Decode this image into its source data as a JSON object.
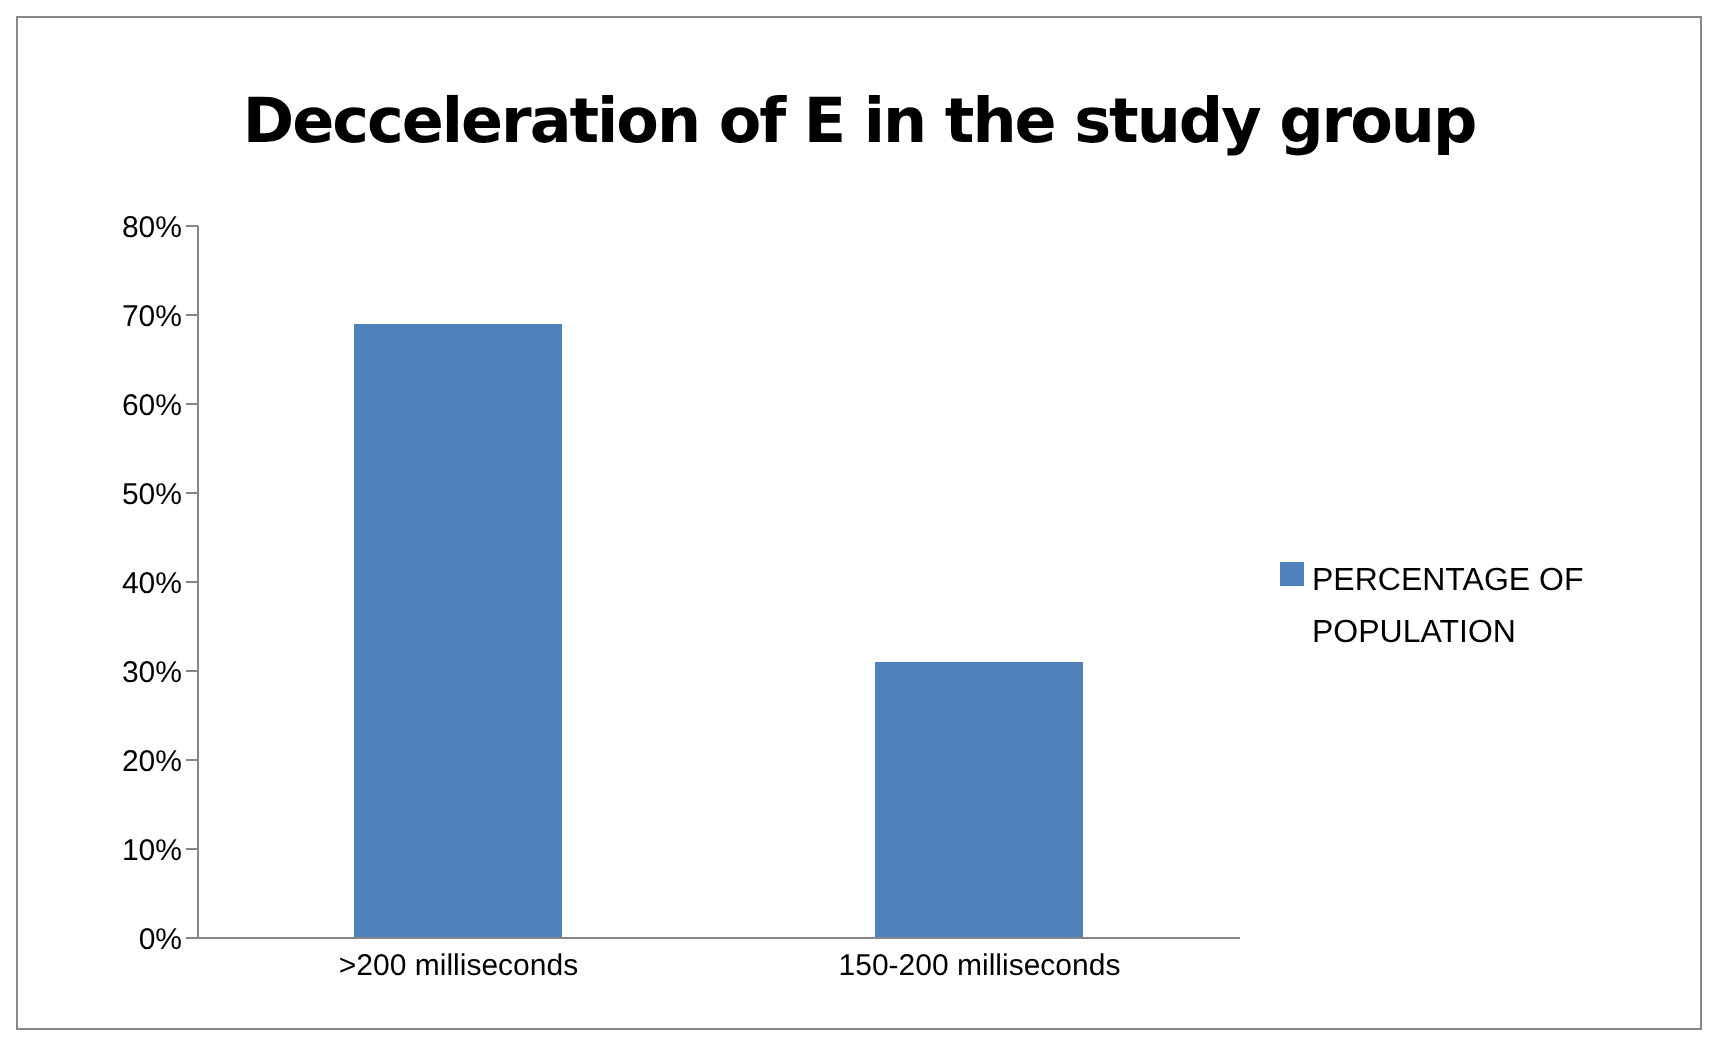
{
  "chart_data": {
    "type": "bar",
    "title": "Decceleration of E in the study group",
    "categories": [
      ">200 milliseconds",
      "150-200 milliseconds"
    ],
    "series": [
      {
        "name": "PERCENTAGE OF POPULATION",
        "color": "#4f81bd",
        "values": [
          69,
          31
        ]
      }
    ],
    "ylim": [
      0,
      80
    ],
    "yticks": [
      {
        "value": 0,
        "label": "0%"
      },
      {
        "value": 10,
        "label": "10%"
      },
      {
        "value": 20,
        "label": "20%"
      },
      {
        "value": 30,
        "label": "30%"
      },
      {
        "value": 40,
        "label": "40%"
      },
      {
        "value": 50,
        "label": "50%"
      },
      {
        "value": 60,
        "label": "60%"
      },
      {
        "value": 70,
        "label": "70%"
      },
      {
        "value": 80,
        "label": "80%"
      }
    ],
    "grid": false,
    "legend": "right"
  }
}
